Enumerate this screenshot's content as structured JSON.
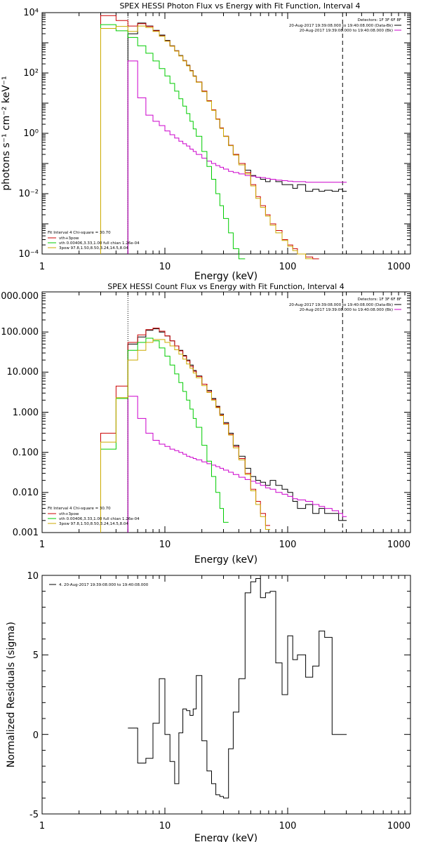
{
  "chart_data": [
    {
      "type": "line",
      "title": "SPEX HESSI Photon Flux vs Energy with Fit Function, Interval 4",
      "xlabel": "Energy (keV)",
      "ylabel": "photons s⁻¹ cm⁻² keV⁻¹",
      "xscale": "log",
      "yscale": "log",
      "xlim": [
        1,
        1000
      ],
      "ylim": [
        0.0001,
        10000
      ],
      "x_tick_labels": [
        "1",
        "10",
        "100",
        "1000"
      ],
      "y_tick_labels": [
        "10⁻⁴",
        "10⁻²",
        "10⁰",
        "10²",
        "10⁴"
      ],
      "fit_range_markers_keV": [
        5,
        280
      ],
      "legend_right": [
        {
          "text": "Detectors: 1F 3F 6F 8F",
          "color": "#000000"
        },
        {
          "text": "20-Aug-2017 19:39:08.000 to 19:40:08.000 (Data-Bk)",
          "color": "#000000"
        },
        {
          "text": "20-Aug-2017 19:39:08.000 to 19:40:08.000 (Bk)",
          "color": "#cc00cc"
        }
      ],
      "legend_left": [
        {
          "text": "Fit Interval  4    Chi-square = 30.70",
          "color": "#000000"
        },
        {
          "text": "vth+3pow",
          "color": "#cc0000"
        },
        {
          "text": "vth 0.00406,3.33,1.00  full chian 1.26e-04",
          "color": "#00cc00"
        },
        {
          "text": "3pow 97.8,1.50,8.50,3.24,14.5,8.04",
          "color": "#ccaa00"
        }
      ],
      "energy_keV": [
        3,
        4,
        5,
        6,
        7,
        8,
        9,
        10,
        11,
        12,
        13,
        14,
        15,
        16,
        17,
        18,
        20,
        22,
        24,
        26,
        28,
        30,
        33,
        36,
        40,
        45,
        50,
        55,
        60,
        66,
        72,
        80,
        90,
        100,
        110,
        120,
        140,
        160,
        180,
        200,
        230,
        260,
        280
      ],
      "series": [
        {
          "name": "Data-Bk",
          "color": "#000000",
          "values": [
            null,
            null,
            2000,
            4500,
            3600,
            2600,
            1800,
            1200,
            800,
            550,
            380,
            260,
            180,
            120,
            80,
            50,
            25,
            12,
            6,
            3,
            1.5,
            0.8,
            0.4,
            0.2,
            0.1,
            0.06,
            0.04,
            0.035,
            0.03,
            0.025,
            0.03,
            0.025,
            0.02,
            0.02,
            0.015,
            0.02,
            0.012,
            0.014,
            0.012,
            0.013,
            0.012,
            0.014,
            0.012
          ]
        },
        {
          "name": "Bk",
          "color": "#cc00cc",
          "values": [
            null,
            null,
            250,
            15,
            4,
            2.5,
            1.8,
            1.2,
            0.9,
            0.7,
            0.55,
            0.45,
            0.38,
            0.3,
            0.25,
            0.2,
            0.15,
            0.12,
            0.1,
            0.085,
            0.075,
            0.065,
            0.055,
            0.05,
            0.045,
            0.04,
            0.038,
            0.035,
            0.034,
            0.032,
            0.03,
            0.028,
            0.027,
            0.026,
            0.025,
            0.025,
            0.024,
            0.024,
            0.024,
            0.024,
            0.024,
            0.024,
            0.024
          ]
        },
        {
          "name": "vth+3pow",
          "color": "#cc0000",
          "values": [
            8000,
            5500,
            3600,
            4300,
            3500,
            2500,
            1700,
            1150,
            780,
            540,
            370,
            255,
            175,
            118,
            78,
            50,
            25,
            12,
            6,
            3,
            1.5,
            0.8,
            0.4,
            0.2,
            0.1,
            0.05,
            0.02,
            0.008,
            0.004,
            0.002,
            0.001,
            0.0006,
            0.0003,
            0.0002,
            0.00015,
            0.0001,
            8e-05,
            6e-05,
            null,
            null,
            null,
            null,
            null
          ]
        },
        {
          "name": "vth",
          "color": "#00cc00",
          "values": [
            4000,
            2500,
            1500,
            800,
            450,
            250,
            140,
            80,
            45,
            25,
            14,
            8,
            4.5,
            2.5,
            1.4,
            0.8,
            0.25,
            0.08,
            0.03,
            0.01,
            0.004,
            0.0015,
            0.0005,
            0.00015,
            3e-05,
            null,
            null,
            null,
            null,
            null,
            null,
            null,
            null,
            null,
            null,
            null,
            null,
            null,
            null,
            null,
            null,
            null,
            null
          ]
        },
        {
          "name": "3pow",
          "color": "#ccaa00",
          "values": [
            3000,
            3500,
            2400,
            3600,
            3200,
            2400,
            1650,
            1130,
            770,
            530,
            365,
            250,
            172,
            116,
            77,
            49,
            24,
            11.5,
            5.8,
            2.9,
            1.45,
            0.78,
            0.39,
            0.19,
            0.09,
            0.045,
            0.018,
            0.007,
            0.0035,
            0.0018,
            0.0009,
            0.0005,
            0.00028,
            0.00018,
            0.00013,
            0.0001,
            7e-05,
            null,
            null,
            null,
            null,
            null,
            null
          ]
        }
      ]
    },
    {
      "type": "line",
      "title": "SPEX HESSI Count Flux vs Energy with Fit Function, Interval 4",
      "xlabel": "Energy (keV)",
      "ylabel": "",
      "xscale": "log",
      "yscale": "log",
      "xlim": [
        1,
        1000
      ],
      "ylim": [
        0.001,
        1000
      ],
      "x_tick_labels": [
        "1",
        "10",
        "100",
        "1000"
      ],
      "y_tick_labels": [
        "0.001",
        "0.010",
        "0.100",
        "1.000",
        "10.000",
        "100.000",
        "1000.000"
      ],
      "fit_range_markers_keV": [
        5,
        280
      ],
      "legend_right": [
        {
          "text": "Detectors: 1F 3F 6F 8F",
          "color": "#000000"
        },
        {
          "text": "20-Aug-2017 19:39:08.000 to 19:40:08.000 (Data-Bk)",
          "color": "#000000"
        },
        {
          "text": "20-Aug-2017 19:39:08.000 to 19:40:08.000 (Bk)",
          "color": "#cc00cc"
        }
      ],
      "legend_left": [
        {
          "text": "Fit Interval  4    Chi-square = 30.70",
          "color": "#000000"
        },
        {
          "text": "vth+3pow",
          "color": "#cc0000"
        },
        {
          "text": "vth 0.00406,3.33,1.00  full chian 1.26e-04",
          "color": "#00cc00"
        },
        {
          "text": "3pow 97.8,1.50,8.50,3.24,14.5,8.04",
          "color": "#ccaa00"
        }
      ],
      "energy_keV": [
        3,
        4,
        5,
        6,
        7,
        8,
        9,
        10,
        11,
        12,
        13,
        14,
        15,
        16,
        17,
        18,
        20,
        22,
        24,
        26,
        28,
        30,
        33,
        36,
        40,
        45,
        50,
        55,
        60,
        66,
        72,
        80,
        90,
        100,
        110,
        120,
        140,
        160,
        180,
        200,
        230,
        260,
        280
      ],
      "series": [
        {
          "name": "Data-Bk",
          "color": "#000000",
          "values": [
            null,
            null,
            50,
            75,
            110,
            120,
            100,
            80,
            60,
            45,
            35,
            26,
            20,
            15,
            11,
            8,
            5,
            3.5,
            2.2,
            1.4,
            0.9,
            0.55,
            0.3,
            0.15,
            0.08,
            0.04,
            0.025,
            0.02,
            0.018,
            0.015,
            0.02,
            0.015,
            0.012,
            0.01,
            0.006,
            0.004,
            0.005,
            0.003,
            0.004,
            0.003,
            0.003,
            0.002,
            0.002
          ]
        },
        {
          "name": "Bk",
          "color": "#cc00cc",
          "values": [
            null,
            null,
            2.5,
            0.7,
            0.3,
            0.2,
            0.16,
            0.14,
            0.12,
            0.11,
            0.1,
            0.09,
            0.08,
            0.075,
            0.07,
            0.065,
            0.058,
            0.052,
            0.048,
            0.044,
            0.04,
            0.036,
            0.032,
            0.028,
            0.024,
            0.021,
            0.019,
            0.017,
            0.015,
            0.013,
            0.012,
            0.01,
            0.009,
            0.008,
            0.007,
            0.0065,
            0.006,
            0.005,
            0.0045,
            0.004,
            0.0035,
            0.003,
            0.0025
          ]
        },
        {
          "name": "vth+3pow",
          "color": "#cc0000",
          "values": [
            0.3,
            4.5,
            55,
            85,
            115,
            125,
            105,
            80,
            60,
            45,
            34,
            25,
            19,
            14,
            10.5,
            7.8,
            5,
            3.3,
            2.1,
            1.35,
            0.85,
            0.52,
            0.28,
            0.14,
            0.07,
            0.03,
            0.012,
            0.006,
            0.003,
            0.0015,
            null,
            null,
            null,
            null,
            null,
            null,
            null,
            null,
            null,
            null,
            null,
            null,
            null
          ]
        },
        {
          "name": "vth",
          "color": "#00cc00",
          "values": [
            0.12,
            2.2,
            35,
            55,
            70,
            60,
            40,
            25,
            15,
            9,
            5.5,
            3.3,
            2,
            1.2,
            0.7,
            0.42,
            0.15,
            0.06,
            0.025,
            0.01,
            0.004,
            0.0018,
            null,
            null,
            null,
            null,
            null,
            null,
            null,
            null,
            null,
            null,
            null,
            null,
            null,
            null,
            null,
            null,
            null,
            null,
            null,
            null,
            null
          ]
        },
        {
          "name": "3pow",
          "color": "#ccaa00",
          "values": [
            0.18,
            2.3,
            20,
            35,
            55,
            65,
            65,
            55,
            45,
            36,
            28,
            21,
            16,
            12.5,
            9.5,
            7.2,
            4.6,
            3.1,
            2,
            1.3,
            0.82,
            0.5,
            0.27,
            0.13,
            0.065,
            0.028,
            0.011,
            0.005,
            0.0025,
            0.0012,
            null,
            null,
            null,
            null,
            null,
            null,
            null,
            null,
            null,
            null,
            null,
            null,
            null
          ]
        }
      ]
    },
    {
      "type": "line",
      "title": "",
      "xlabel": "Energy (keV)",
      "ylabel": "Normalized Residuals (sigma)",
      "xscale": "log",
      "yscale": "linear",
      "xlim": [
        1,
        1000
      ],
      "ylim": [
        -5,
        10
      ],
      "x_tick_labels": [
        "1",
        "10",
        "100",
        "1000"
      ],
      "y_tick_labels": [
        "-5",
        "0",
        "5",
        "10"
      ],
      "legend": [
        {
          "text": "4. 20-Aug-2017 19:39:08.000 to 19:40:08.000",
          "color": "#000000"
        }
      ],
      "energy_keV": [
        5,
        6,
        7,
        8,
        9,
        10,
        11,
        12,
        13,
        14,
        15,
        16,
        17,
        18,
        20,
        22,
        24,
        26,
        28,
        30,
        33,
        36,
        40,
        45,
        50,
        55,
        60,
        66,
        72,
        80,
        90,
        100,
        110,
        120,
        140,
        160,
        180,
        200,
        230,
        260,
        280
      ],
      "series": [
        {
          "name": "residuals",
          "color": "#000000",
          "values": [
            0.4,
            -1.8,
            -1.5,
            0.7,
            3.5,
            0,
            -1.7,
            -3.1,
            0.1,
            1.6,
            1.5,
            1.2,
            1.6,
            3.7,
            -0.4,
            -2.3,
            -3.1,
            -3.8,
            -3.9,
            -4.0,
            -0.9,
            1.4,
            3.5,
            8.9,
            9.6,
            9.8,
            8.6,
            8.9,
            9.0,
            4.5,
            2.5,
            6.2,
            4.7,
            5.0,
            3.6,
            4.3,
            6.5,
            6.1,
            0.0,
            0.0,
            0.0
          ]
        }
      ]
    }
  ]
}
